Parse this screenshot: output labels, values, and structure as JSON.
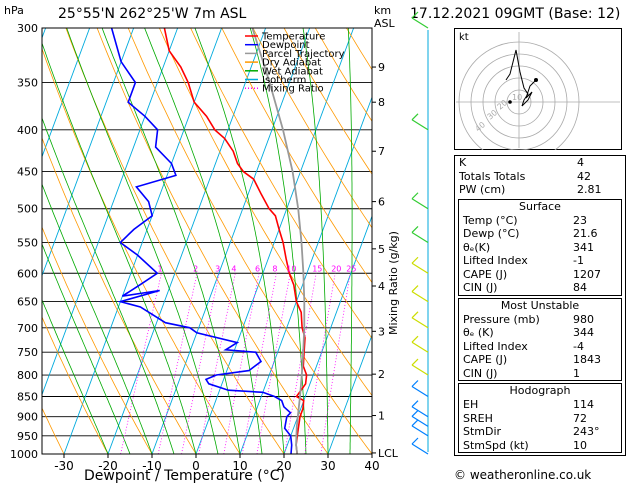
{
  "header": {
    "location": "25°55'N  262°25'W  7m  ASL",
    "datetime": "17.12.2021  09GMT  (Base: 12)",
    "left_unit": "hPa",
    "right_unit_top": "km",
    "right_unit_bottom": "ASL"
  },
  "legend": [
    {
      "label": "Temperature",
      "color": "#ff0000",
      "style": "solid"
    },
    {
      "label": "Dewpoint",
      "color": "#0000ff",
      "style": "solid"
    },
    {
      "label": "Parcel Trajectory",
      "color": "#999999",
      "style": "solid"
    },
    {
      "label": "Dry Adiabat",
      "color": "#ff9900",
      "style": "solid"
    },
    {
      "label": "Wet Adiabat",
      "color": "#00aa00",
      "style": "solid"
    },
    {
      "label": "Isotherm",
      "color": "#00aadd",
      "style": "solid"
    },
    {
      "label": "Mixing Ratio",
      "color": "#ff00ff",
      "style": "dotted"
    }
  ],
  "chart_data": {
    "type": "line",
    "title": "",
    "xlabel": "Dewpoint / Temperature (°C)",
    "ylabel": "",
    "right_axis_label": "Mixing Ratio (g/kg)",
    "xlim": [
      -35,
      40
    ],
    "ylim_hpa": [
      1000,
      300
    ],
    "x_ticks": [
      -30,
      -20,
      -10,
      0,
      10,
      20,
      30,
      40
    ],
    "pressure_ticks": [
      300,
      350,
      400,
      450,
      500,
      550,
      600,
      650,
      700,
      750,
      800,
      850,
      900,
      950,
      1000
    ],
    "km_ticks": [
      {
        "label": "9",
        "p": 335
      },
      {
        "label": "8",
        "p": 370
      },
      {
        "label": "7",
        "p": 425
      },
      {
        "label": "6",
        "p": 490
      },
      {
        "label": "5",
        "p": 560
      },
      {
        "label": "4",
        "p": 622
      },
      {
        "label": "3",
        "p": 707
      },
      {
        "label": "2",
        "p": 798
      },
      {
        "label": "1",
        "p": 897
      },
      {
        "label": "LCL",
        "p": 997
      }
    ],
    "mixing_ratio_labels": [
      "1",
      "2",
      "3",
      "4",
      "6",
      "8",
      "10",
      "15",
      "20",
      "25"
    ],
    "series": [
      {
        "name": "Temperature",
        "color": "#ff0000",
        "points": [
          [
            23,
            1000
          ],
          [
            22,
            975
          ],
          [
            21.5,
            950
          ],
          [
            21,
            925
          ],
          [
            20.5,
            900
          ],
          [
            20.5,
            880
          ],
          [
            20,
            860
          ],
          [
            18,
            850
          ],
          [
            19,
            820
          ],
          [
            18.5,
            800
          ],
          [
            17,
            780
          ],
          [
            16,
            750
          ],
          [
            15,
            720
          ],
          [
            13.5,
            700
          ],
          [
            12,
            670
          ],
          [
            10,
            650
          ],
          [
            8,
            620
          ],
          [
            6,
            600
          ],
          [
            4,
            575
          ],
          [
            2,
            550
          ],
          [
            0,
            530
          ],
          [
            -2,
            510
          ],
          [
            -4,
            500
          ],
          [
            -7,
            480
          ],
          [
            -10,
            460
          ],
          [
            -13,
            450
          ],
          [
            -15,
            440
          ],
          [
            -17,
            425
          ],
          [
            -20,
            410
          ],
          [
            -23,
            400
          ],
          [
            -26,
            385
          ],
          [
            -30,
            370
          ],
          [
            -33,
            350
          ],
          [
            -36,
            335
          ],
          [
            -40,
            320
          ],
          [
            -43,
            300
          ]
        ]
      },
      {
        "name": "Dewpoint",
        "color": "#0000ff",
        "points": [
          [
            21.6,
            1000
          ],
          [
            21,
            975
          ],
          [
            20,
            950
          ],
          [
            18,
            930
          ],
          [
            17.5,
            900
          ],
          [
            18,
            890
          ],
          [
            16,
            875
          ],
          [
            15,
            860
          ],
          [
            13,
            850
          ],
          [
            10,
            840
          ],
          [
            2,
            835
          ],
          [
            -3,
            820
          ],
          [
            -4,
            810
          ],
          [
            -2,
            800
          ],
          [
            5,
            790
          ],
          [
            7,
            770
          ],
          [
            5,
            750
          ],
          [
            -2,
            745
          ],
          [
            0,
            730
          ],
          [
            -10,
            710
          ],
          [
            -12,
            700
          ],
          [
            -18,
            690
          ],
          [
            -25,
            660
          ],
          [
            -30,
            650
          ],
          [
            -22,
            630
          ],
          [
            -30,
            640
          ],
          [
            -27,
            620
          ],
          [
            -24,
            600
          ],
          [
            -30,
            570
          ],
          [
            -35,
            550
          ],
          [
            -33,
            530
          ],
          [
            -30,
            510
          ],
          [
            -32,
            490
          ],
          [
            -36,
            470
          ],
          [
            -28,
            455
          ],
          [
            -30,
            440
          ],
          [
            -35,
            420
          ],
          [
            -36,
            400
          ],
          [
            -40,
            385
          ],
          [
            -45,
            370
          ],
          [
            -45,
            350
          ],
          [
            -50,
            330
          ],
          [
            -55,
            300
          ]
        ]
      },
      {
        "name": "Parcel Trajectory",
        "color": "#999999",
        "points": [
          [
            23,
            1000
          ],
          [
            22,
            975
          ],
          [
            21.3,
            950
          ],
          [
            20.6,
            925
          ],
          [
            20,
            900
          ],
          [
            18.8,
            850
          ],
          [
            17.4,
            800
          ],
          [
            15.8,
            750
          ],
          [
            14,
            700
          ],
          [
            11.8,
            650
          ],
          [
            9.2,
            600
          ],
          [
            6.2,
            550
          ],
          [
            2.6,
            500
          ],
          [
            -1.8,
            450
          ],
          [
            -7.5,
            400
          ],
          [
            -14.5,
            350
          ],
          [
            -23,
            300
          ]
        ]
      }
    ]
  },
  "hodograph": {
    "unit_label": "kt",
    "ring_labels": [
      "10",
      "20",
      "30",
      "40"
    ]
  },
  "indices": {
    "rows": [
      {
        "label": "K",
        "value": "4"
      },
      {
        "label": "Totals Totals",
        "value": "42"
      },
      {
        "label": "PW (cm)",
        "value": "2.81"
      }
    ],
    "surface_title": "Surface",
    "surface": [
      {
        "label": "Temp (°C)",
        "value": "23"
      },
      {
        "label": "Dewp (°C)",
        "value": "21.6"
      },
      {
        "label": "θₑ(K)",
        "value": "341"
      },
      {
        "label": "Lifted Index",
        "value": "-1"
      },
      {
        "label": "CAPE (J)",
        "value": "1207"
      },
      {
        "label": "CIN (J)",
        "value": "84"
      }
    ],
    "mu_title": "Most Unstable",
    "most_unstable": [
      {
        "label": "Pressure (mb)",
        "value": "980"
      },
      {
        "label": "θₑ (K)",
        "value": "344"
      },
      {
        "label": "Lifted Index",
        "value": "-4"
      },
      {
        "label": "CAPE (J)",
        "value": "1843"
      },
      {
        "label": "CIN (J)",
        "value": "1"
      }
    ],
    "hodo_title": "Hodograph",
    "hodograph": [
      {
        "label": "EH",
        "value": "114"
      },
      {
        "label": "SREH",
        "value": "72"
      },
      {
        "label": "StmDir",
        "value": "243°"
      },
      {
        "label": "StmSpd (kt)",
        "value": "10"
      }
    ]
  },
  "footer": "© weatheronline.co.uk"
}
